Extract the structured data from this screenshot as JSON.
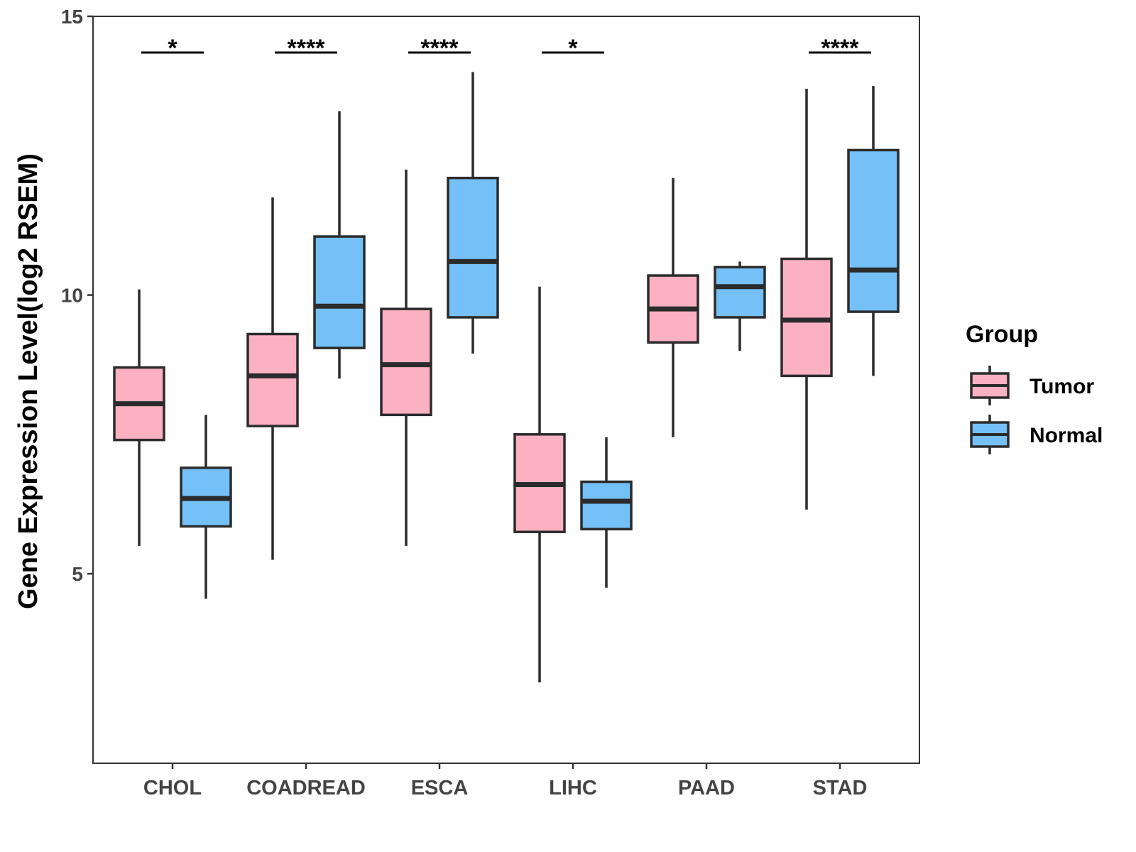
{
  "chart_data": {
    "type": "boxplot",
    "title": "",
    "xlabel": "",
    "ylabel": "Gene Expression Level(log2 RSEM)",
    "ylim": [
      1.6,
      15
    ],
    "yticks": [
      5,
      10,
      15
    ],
    "ytick_labels": [
      "5",
      "10",
      "15"
    ],
    "grid": false,
    "legend": {
      "title": "Group",
      "position": "right",
      "entries": [
        {
          "name": "Tumor",
          "color": "#FBB1C2"
        },
        {
          "name": "Normal",
          "color": "#74C0F7"
        }
      ]
    },
    "categories": [
      "CHOL",
      "COADREAD",
      "ESCA",
      "LIHC",
      "PAAD",
      "STAD"
    ],
    "series": [
      {
        "name": "Tumor",
        "color": "#FBB1C2",
        "boxes": [
          {
            "whisker_low": 5.5,
            "q1": 7.4,
            "median": 8.05,
            "q3": 8.7,
            "whisker_high": 10.1
          },
          {
            "whisker_low": 5.25,
            "q1": 7.65,
            "median": 8.55,
            "q3": 9.3,
            "whisker_high": 11.75
          },
          {
            "whisker_low": 5.5,
            "q1": 7.85,
            "median": 8.75,
            "q3": 9.75,
            "whisker_high": 12.25
          },
          {
            "whisker_low": 3.05,
            "q1": 5.75,
            "median": 6.6,
            "q3": 7.5,
            "whisker_high": 10.15
          },
          {
            "whisker_low": 7.45,
            "q1": 9.15,
            "median": 9.75,
            "q3": 10.35,
            "whisker_high": 12.1
          },
          {
            "whisker_low": 6.15,
            "q1": 8.55,
            "median": 9.55,
            "q3": 10.65,
            "whisker_high": 13.7
          }
        ]
      },
      {
        "name": "Normal",
        "color": "#74C0F7",
        "boxes": [
          {
            "whisker_low": 4.55,
            "q1": 5.85,
            "median": 6.35,
            "q3": 6.9,
            "whisker_high": 7.85
          },
          {
            "whisker_low": 8.5,
            "q1": 9.05,
            "median": 9.8,
            "q3": 11.05,
            "whisker_high": 13.3
          },
          {
            "whisker_low": 8.95,
            "q1": 9.6,
            "median": 10.6,
            "q3": 12.1,
            "whisker_high": 14.0
          },
          {
            "whisker_low": 4.75,
            "q1": 5.8,
            "median": 6.3,
            "q3": 6.65,
            "whisker_high": 7.45
          },
          {
            "whisker_low": 9.0,
            "q1": 9.6,
            "median": 10.15,
            "q3": 10.5,
            "whisker_high": 10.6
          },
          {
            "whisker_low": 8.55,
            "q1": 9.7,
            "median": 10.45,
            "q3": 12.6,
            "whisker_high": 13.75
          }
        ]
      }
    ],
    "significance": [
      {
        "category": "CHOL",
        "label": "*",
        "y": 14.35
      },
      {
        "category": "COADREAD",
        "label": "****",
        "y": 14.35
      },
      {
        "category": "ESCA",
        "label": "****",
        "y": 14.35
      },
      {
        "category": "LIHC",
        "label": "*",
        "y": 14.35
      },
      {
        "category": "PAAD",
        "label": "",
        "y": 14.35
      },
      {
        "category": "STAD",
        "label": "****",
        "y": 14.35
      }
    ]
  }
}
